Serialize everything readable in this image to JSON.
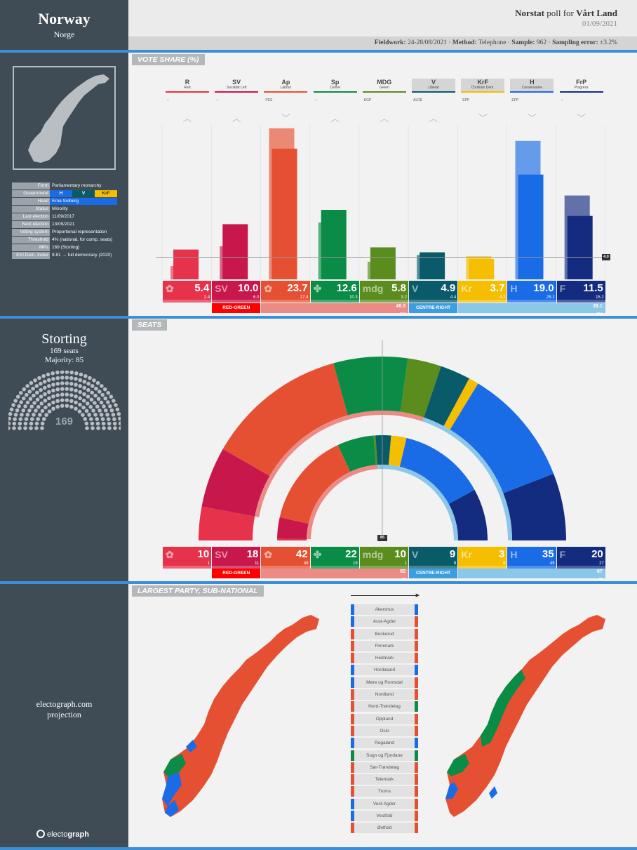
{
  "header": {
    "country": "Norway",
    "country_native": "Norge",
    "pollster": "Norstat",
    "poll_for": "poll for",
    "client": "Vårt Land",
    "date": "01/09/2021",
    "fieldwork_label": "Fieldwork:",
    "fieldwork": "24-28/08/2021",
    "method_label": "Method:",
    "method": "Telephone",
    "sample_label": "Sample:",
    "sample": "962",
    "error_label": "Sampling error:",
    "error": "±3.2%"
  },
  "sections": {
    "vote_share": "VOTE SHARE (%)",
    "seats": "SEATS",
    "largest": "LARGEST PARTY, SUB-NATIONAL"
  },
  "info": [
    {
      "k": "Form",
      "v": "Parliamentary monarchy"
    },
    {
      "k": "Government",
      "v": ""
    },
    {
      "k": "Head",
      "v": "Erna Solberg"
    },
    {
      "k": "Status",
      "v": "Minority"
    },
    {
      "k": "Last election",
      "v": "11/09/2017"
    },
    {
      "k": "Next election",
      "v": "13/09/2021"
    },
    {
      "k": "Voting system",
      "v": "Proportional representation"
    },
    {
      "k": "Threshold",
      "v": "4% (national, for comp. seats)"
    },
    {
      "k": "MPs",
      "v": "169 (Storting)"
    },
    {
      "k": "EIU Dem. Index",
      "v": "9.81 → full democracy (2020)"
    }
  ],
  "government_parties": [
    {
      "abbr": "H",
      "color": "#1a6be6"
    },
    {
      "abbr": "V",
      "color": "#0a5b6a"
    },
    {
      "abbr": "KrF",
      "color": "#f5be00"
    }
  ],
  "parliament": {
    "name": "Storting",
    "seats_text": "169 seats",
    "majority_text": "Majority: 85",
    "total": "169"
  },
  "threshold_label": "4.0",
  "majority_label": "85",
  "footer": {
    "site": "electograph.com",
    "kind": "projection",
    "brand_a": "electo",
    "brand_b": "graph"
  },
  "chart_data": {
    "type": "bar",
    "title": "VOTE SHARE (%)",
    "ylim": [
      0,
      28
    ],
    "threshold": 4.0,
    "parties": [
      {
        "abbr": "R",
        "name": "Red",
        "group": "–",
        "color": "#e6324b",
        "logo": "✿",
        "value": 5.4,
        "previous": 2.4,
        "seats": 10,
        "prev_seats": 1
      },
      {
        "abbr": "SV",
        "name": "Socialist Left",
        "group": "–",
        "color": "#c8174a",
        "logo": "SV",
        "value": 10.0,
        "previous": 6.0,
        "seats": 18,
        "prev_seats": 11
      },
      {
        "abbr": "Ap",
        "name": "Labour",
        "group": "PES",
        "color": "#e65032",
        "logo": "✿",
        "value": 23.7,
        "previous": 27.4,
        "seats": 42,
        "prev_seats": 49
      },
      {
        "abbr": "Sp",
        "name": "Centre",
        "group": "–",
        "color": "#0a8c46",
        "logo": "✤",
        "value": 12.6,
        "previous": 10.3,
        "seats": 22,
        "prev_seats": 19
      },
      {
        "abbr": "MDG",
        "name": "Green",
        "group": "EGP",
        "color": "#5a8c1e",
        "logo": "mdg",
        "value": 5.8,
        "previous": 3.2,
        "seats": 10,
        "prev_seats": 1
      },
      {
        "abbr": "V",
        "name": "Liberal",
        "group": "ALDE",
        "color": "#0a5b6a",
        "logo": "V",
        "value": 4.9,
        "previous": 4.4,
        "seats": 9,
        "prev_seats": 8
      },
      {
        "abbr": "KrF",
        "name": "Christian Dem.",
        "group": "EPP",
        "color": "#f5be00",
        "logo": "Kr",
        "value": 3.7,
        "previous": 4.2,
        "seats": 3,
        "prev_seats": 8
      },
      {
        "abbr": "H",
        "name": "Conservative",
        "group": "EPP",
        "color": "#1a6be6",
        "logo": "H",
        "value": 19.0,
        "previous": 25.1,
        "seats": 35,
        "prev_seats": 45
      },
      {
        "abbr": "FrP",
        "name": "Progress",
        "group": "–",
        "color": "#142c80",
        "logo": "F",
        "value": 11.5,
        "previous": 15.2,
        "seats": 20,
        "prev_seats": 27
      }
    ],
    "coalitions": [
      {
        "name": "RED-GREEN",
        "value": 46.3,
        "previous": 43.6,
        "seats": 82,
        "prev_seats": 79,
        "color": "#ff0000",
        "light": "#ec8a86"
      },
      {
        "name": "CENTRE-RIGHT",
        "value": 39.1,
        "previous": 48.9,
        "seats": 67,
        "prev_seats": 88,
        "color": "#3c9ee0",
        "light": "#8ac7e8"
      }
    ]
  },
  "regions": [
    {
      "name": "Akershus",
      "prev": "#1a6be6",
      "now": "#1a6be6"
    },
    {
      "name": "Aust-Agder",
      "prev": "#1a6be6",
      "now": "#e65032"
    },
    {
      "name": "Buskerud",
      "prev": "#e65032",
      "now": "#e65032"
    },
    {
      "name": "Finnmark",
      "prev": "#e65032",
      "now": "#e65032"
    },
    {
      "name": "Hedmark",
      "prev": "#e65032",
      "now": "#e65032"
    },
    {
      "name": "Hordaland",
      "prev": "#1a6be6",
      "now": "#1a6be6"
    },
    {
      "name": "Møre og Romsdal",
      "prev": "#1a6be6",
      "now": "#e65032"
    },
    {
      "name": "Nordland",
      "prev": "#e65032",
      "now": "#e65032"
    },
    {
      "name": "Nord-Trøndelag",
      "prev": "#e65032",
      "now": "#0a8c46"
    },
    {
      "name": "Oppland",
      "prev": "#e65032",
      "now": "#e65032"
    },
    {
      "name": "Oslo",
      "prev": "#e65032",
      "now": "#e65032"
    },
    {
      "name": "Rogaland",
      "prev": "#1a6be6",
      "now": "#1a6be6"
    },
    {
      "name": "Sogn og Fjordane",
      "prev": "#0a8c46",
      "now": "#0a8c46"
    },
    {
      "name": "Sør-Trøndelag",
      "prev": "#e65032",
      "now": "#e65032"
    },
    {
      "name": "Telemark",
      "prev": "#e65032",
      "now": "#e65032"
    },
    {
      "name": "Troms",
      "prev": "#e65032",
      "now": "#e65032"
    },
    {
      "name": "Vest-Agder",
      "prev": "#1a6be6",
      "now": "#e65032"
    },
    {
      "name": "Vestfold",
      "prev": "#1a6be6",
      "now": "#e65032"
    },
    {
      "name": "Østfold",
      "prev": "#e65032",
      "now": "#e65032"
    }
  ]
}
